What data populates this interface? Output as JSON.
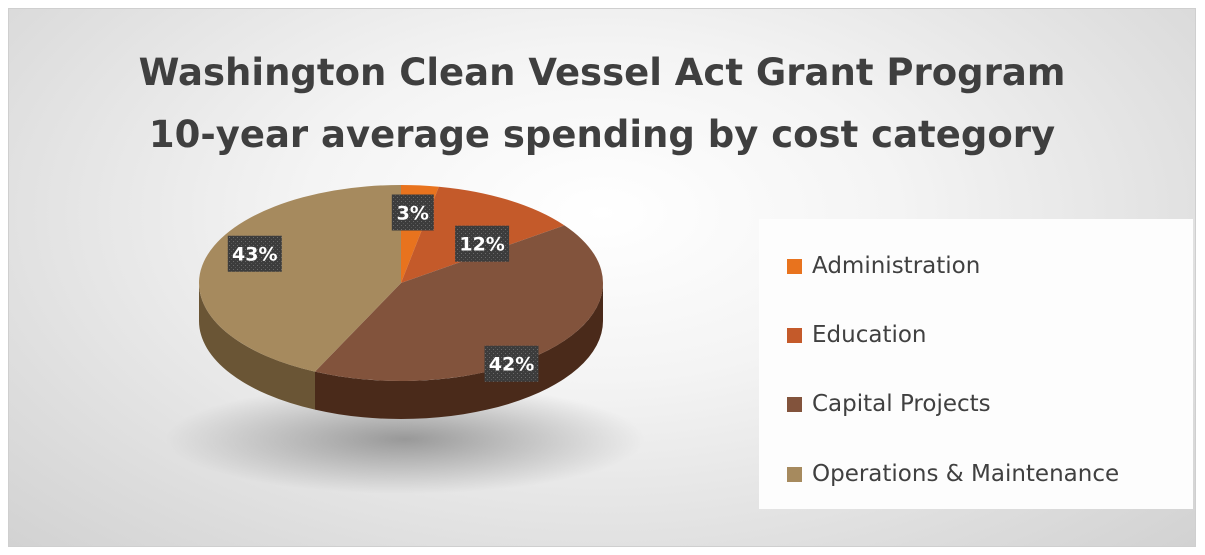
{
  "chart_data": {
    "type": "pie",
    "title_line1": "Washington Clean Vessel Act Grant Program",
    "title_line2": "10-year average spending by cost category",
    "slices": [
      {
        "label": "Administration",
        "value": 3,
        "display": "3%",
        "color": "#e8731e",
        "side": "#a8500f"
      },
      {
        "label": "Education",
        "value": 12,
        "display": "12%",
        "color": "#c45a2a",
        "side": "#8a3a17"
      },
      {
        "label": "Capital Projects",
        "value": 42,
        "display": "42%",
        "color": "#82533c",
        "side": "#4a2a1a"
      },
      {
        "label": "Operations & Maintenance",
        "value": 43,
        "display": "43%",
        "color": "#a68a5e",
        "side": "#6a5535"
      }
    ],
    "legend_position": "right"
  }
}
